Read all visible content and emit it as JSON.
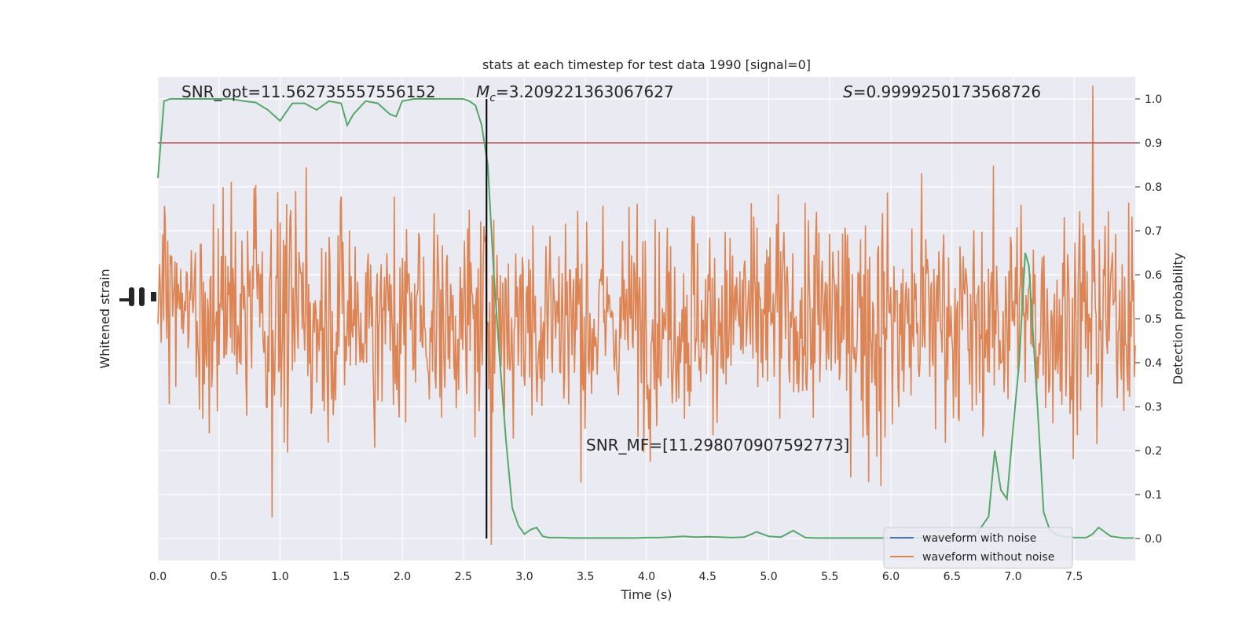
{
  "chart_data": {
    "type": "line",
    "title": "stats at each timestep for test data 1990 [signal=0]",
    "xlabel": "Time (s)",
    "ylabel_left": "Whitened strain",
    "ylabel_right": "Detection probability",
    "xlim": [
      0,
      8
    ],
    "ylim_right": [
      -0.05,
      1.05
    ],
    "x_ticks": [
      "0.0",
      "0.5",
      "1.0",
      "1.5",
      "2.0",
      "2.5",
      "3.0",
      "3.5",
      "4.0",
      "4.5",
      "5.0",
      "5.5",
      "6.0",
      "6.5",
      "7.0",
      "7.5"
    ],
    "y_right_ticks": [
      "0.0",
      "0.1",
      "0.2",
      "0.3",
      "0.4",
      "0.5",
      "0.6",
      "0.7",
      "0.8",
      "0.9",
      "1.0"
    ],
    "grid": true,
    "legend_position": "lower-right",
    "legend": [
      {
        "label": "waveform with noise",
        "color": "#4c72b0"
      },
      {
        "label": "waveform without noise",
        "color": "#dd8452"
      }
    ],
    "annotations": {
      "snr_opt": "SNR_opt=11.562735557556152",
      "mc_symbol": "M",
      "mc_sub": "c",
      "mc_value": "=3.209221363067627",
      "s_symbol": "S",
      "s_value": "=0.9999250173568726",
      "snr_mf": "SNR_MF=[11.298070907592773]"
    },
    "threshold": {
      "value": 0.9,
      "color": "#c44e52"
    },
    "marker_time": 2.69,
    "detection_probability": {
      "color": "#55a868",
      "x": [
        0.0,
        0.05,
        0.1,
        0.15,
        0.2,
        0.3,
        0.4,
        0.5,
        0.6,
        0.7,
        0.8,
        0.9,
        1.0,
        1.05,
        1.1,
        1.2,
        1.3,
        1.4,
        1.5,
        1.55,
        1.6,
        1.7,
        1.8,
        1.9,
        1.95,
        2.0,
        2.1,
        2.2,
        2.3,
        2.4,
        2.5,
        2.55,
        2.6,
        2.65,
        2.7,
        2.75,
        2.8,
        2.85,
        2.9,
        2.95,
        3.0,
        3.05,
        3.1,
        3.15,
        3.2,
        3.3,
        3.4,
        3.5,
        3.6,
        3.7,
        3.8,
        3.9,
        4.0,
        4.1,
        4.2,
        4.3,
        4.4,
        4.5,
        4.6,
        4.7,
        4.8,
        4.9,
        5.0,
        5.1,
        5.2,
        5.3,
        5.4,
        5.5,
        5.6,
        5.7,
        5.8,
        5.9,
        6.0,
        6.1,
        6.2,
        6.3,
        6.4,
        6.5,
        6.6,
        6.7,
        6.8,
        6.85,
        6.9,
        6.95,
        7.0,
        7.05,
        7.1,
        7.13,
        7.2,
        7.25,
        7.3,
        7.35,
        7.4,
        7.5,
        7.6,
        7.65,
        7.7,
        7.8,
        7.9,
        7.99
      ],
      "y": [
        0.82,
        0.995,
        1.0,
        1.0,
        1.0,
        1.0,
        1.0,
        1.0,
        1.0,
        0.995,
        0.992,
        0.975,
        0.95,
        0.97,
        0.99,
        0.99,
        0.975,
        0.995,
        0.99,
        0.94,
        0.965,
        0.995,
        0.99,
        0.965,
        0.96,
        0.995,
        1.0,
        1.0,
        1.0,
        1.0,
        1.0,
        0.995,
        0.985,
        0.94,
        0.85,
        0.6,
        0.4,
        0.22,
        0.07,
        0.03,
        0.01,
        0.02,
        0.025,
        0.005,
        0.002,
        0.002,
        0.001,
        0.001,
        0.001,
        0.001,
        0.001,
        0.001,
        0.002,
        0.002,
        0.003,
        0.005,
        0.003,
        0.004,
        0.003,
        0.002,
        0.003,
        0.015,
        0.005,
        0.003,
        0.018,
        0.002,
        0.001,
        0.001,
        0.001,
        0.001,
        0.001,
        0.001,
        0.001,
        0.001,
        0.002,
        0.001,
        0.002,
        0.001,
        0.003,
        0.01,
        0.05,
        0.2,
        0.11,
        0.09,
        0.25,
        0.4,
        0.65,
        0.62,
        0.3,
        0.06,
        0.02,
        0.01,
        0.005,
        0.002,
        0.002,
        0.01,
        0.025,
        0.005,
        0.001,
        0.001
      ]
    },
    "strain_without_noise": {
      "color": "#dd8452",
      "samples": 1200,
      "seed": 1990
    }
  }
}
